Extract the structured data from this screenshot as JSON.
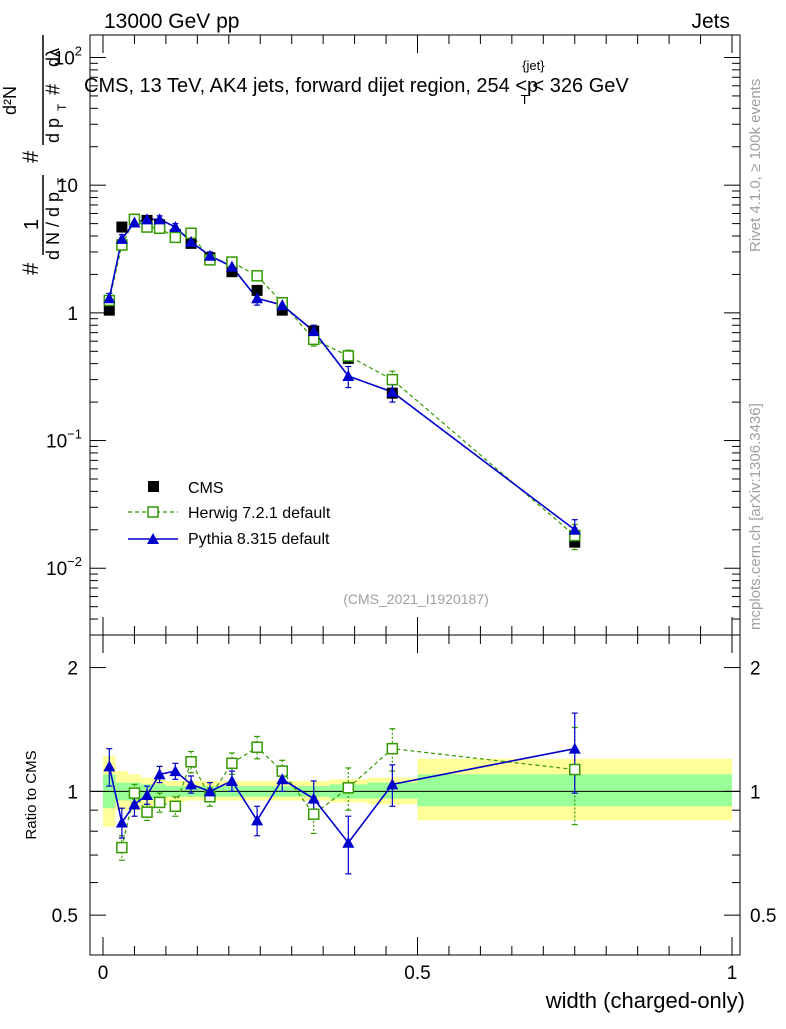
{
  "header": {
    "energy": "13000 GeV pp",
    "process": "Jets"
  },
  "side_text": {
    "rivet": "Rivet 4.1.0, ≥ 100k events",
    "mcplots": "mcplots.cern.ch [arXiv:1306.3436]"
  },
  "colors": {
    "cms": "#000000",
    "herwig": "#339900",
    "pythia": "#0000cc",
    "band_outer": "#ffff99",
    "band_inner": "#99ff99"
  },
  "chart_data": [
    {
      "type": "scatter",
      "name": "main",
      "title": "CMS, 13 TeV, AK4 jets, forward dijet region, 254 <p",
      "title_sup": "{jet}",
      "title_sub": "T",
      "title_tail": "< 326 GeV",
      "reference": "(CMS_2021_I1920187)",
      "yscale": "log",
      "ylim": [
        0.003,
        150
      ],
      "xlim": [
        -0.01,
        1.0
      ],
      "ylabel_prefix": "#",
      "ytick_labels": [
        {
          "value": 0.01,
          "base": "10",
          "exp": "−2"
        },
        {
          "value": 0.1,
          "base": "10",
          "exp": "−1"
        },
        {
          "value": 1,
          "base": "1",
          "exp": ""
        },
        {
          "value": 10,
          "base": "10",
          "exp": ""
        },
        {
          "value": 100,
          "base": "10",
          "exp": "2"
        }
      ],
      "legend": {
        "position": "bottom-left",
        "entries": [
          "CMS",
          "Herwig 7.2.1 default",
          "Pythia 8.315 default"
        ]
      },
      "series": [
        {
          "name": "CMS",
          "style": "data",
          "x": [
            0.01,
            0.03,
            0.05,
            0.07,
            0.09,
            0.115,
            0.14,
            0.17,
            0.205,
            0.245,
            0.285,
            0.335,
            0.39,
            0.46,
            0.75
          ],
          "y": [
            1.05,
            4.7,
            5.4,
            5.3,
            4.9,
            4.1,
            3.5,
            2.7,
            2.1,
            1.5,
            1.05,
            0.72,
            0.44,
            0.235,
            0.016
          ]
        },
        {
          "name": "Herwig 7.2.1 default",
          "style": "dashed-open-square",
          "x": [
            0.01,
            0.03,
            0.05,
            0.07,
            0.09,
            0.115,
            0.14,
            0.17,
            0.205,
            0.245,
            0.285,
            0.335,
            0.39,
            0.46,
            0.75
          ],
          "y": [
            1.25,
            3.4,
            5.4,
            4.7,
            4.6,
            3.9,
            4.2,
            2.6,
            2.5,
            1.95,
            1.2,
            0.62,
            0.46,
            0.3,
            0.018
          ],
          "err": [
            0.12,
            0.25,
            0.35,
            0.3,
            0.3,
            0.3,
            0.3,
            0.2,
            0.2,
            0.15,
            0.1,
            0.07,
            0.05,
            0.05,
            0.004
          ]
        },
        {
          "name": "Pythia 8.315 default",
          "style": "solid-filled-triangle",
          "x": [
            0.01,
            0.03,
            0.05,
            0.07,
            0.09,
            0.115,
            0.14,
            0.17,
            0.205,
            0.245,
            0.285,
            0.335,
            0.39,
            0.46,
            0.75
          ],
          "y": [
            1.3,
            3.8,
            5.1,
            5.4,
            5.4,
            4.7,
            3.6,
            2.8,
            2.3,
            1.3,
            1.15,
            0.72,
            0.32,
            0.24,
            0.02
          ],
          "err": [
            0.12,
            0.3,
            0.35,
            0.35,
            0.35,
            0.3,
            0.3,
            0.2,
            0.2,
            0.15,
            0.12,
            0.08,
            0.06,
            0.04,
            0.004
          ]
        }
      ]
    },
    {
      "type": "scatter",
      "name": "ratio",
      "ylabel": "Ratio to CMS",
      "xlabel": "width (charged-only)",
      "yscale": "log",
      "ylim": [
        0.4,
        2.4
      ],
      "xlim": [
        -0.01,
        1.0
      ],
      "ytick_labels": [
        {
          "value": 0.5,
          "label": "0.5"
        },
        {
          "value": 1,
          "label": "1"
        },
        {
          "value": 2,
          "label": "2"
        }
      ],
      "xtick_labels": [
        {
          "value": 0,
          "label": "0"
        },
        {
          "value": 0.5,
          "label": "0.5"
        },
        {
          "value": 1,
          "label": "1"
        }
      ],
      "bands": {
        "edges": [
          0.0,
          0.02,
          0.04,
          0.06,
          0.08,
          0.1,
          0.13,
          0.155,
          0.185,
          0.225,
          0.265,
          0.31,
          0.36,
          0.42,
          0.5,
          1.0
        ],
        "outer_lo": [
          0.82,
          0.9,
          0.9,
          0.92,
          0.93,
          0.94,
          0.95,
          0.95,
          0.95,
          0.95,
          0.95,
          0.95,
          0.94,
          0.93,
          0.85
        ],
        "outer_hi": [
          1.22,
          1.12,
          1.1,
          1.08,
          1.07,
          1.06,
          1.06,
          1.06,
          1.06,
          1.06,
          1.06,
          1.06,
          1.07,
          1.08,
          1.2
        ],
        "inner_lo": [
          0.91,
          0.95,
          0.95,
          0.96,
          0.96,
          0.97,
          0.97,
          0.97,
          0.97,
          0.97,
          0.97,
          0.97,
          0.96,
          0.96,
          0.92
        ],
        "inner_hi": [
          1.1,
          1.05,
          1.05,
          1.04,
          1.04,
          1.03,
          1.03,
          1.03,
          1.03,
          1.03,
          1.03,
          1.03,
          1.04,
          1.05,
          1.1
        ]
      },
      "series": [
        {
          "name": "Herwig 7.2.1 default",
          "style": "dashed-open-square",
          "x": [
            0.03,
            0.05,
            0.07,
            0.09,
            0.115,
            0.14,
            0.17,
            0.205,
            0.245,
            0.285,
            0.335,
            0.39,
            0.46,
            0.75
          ],
          "y": [
            0.73,
            0.99,
            0.89,
            0.94,
            0.92,
            1.18,
            0.97,
            1.17,
            1.28,
            1.12,
            0.88,
            1.02,
            1.27,
            1.13
          ],
          "err": [
            0.05,
            0.05,
            0.04,
            0.05,
            0.05,
            0.07,
            0.05,
            0.07,
            0.08,
            0.07,
            0.09,
            0.12,
            0.15,
            0.3
          ]
        },
        {
          "name": "Pythia 8.315 default",
          "style": "solid-filled-triangle",
          "x": [
            0.01,
            0.03,
            0.05,
            0.07,
            0.09,
            0.115,
            0.14,
            0.17,
            0.205,
            0.245,
            0.285,
            0.335,
            0.39,
            0.46,
            0.75
          ],
          "y": [
            1.15,
            0.84,
            0.93,
            0.98,
            1.1,
            1.12,
            1.04,
            1.0,
            1.06,
            0.85,
            1.07,
            0.96,
            0.75,
            1.04,
            1.27
          ],
          "err": [
            0.12,
            0.07,
            0.06,
            0.05,
            0.05,
            0.05,
            0.05,
            0.05,
            0.06,
            0.07,
            0.07,
            0.1,
            0.12,
            0.12,
            0.28
          ]
        }
      ]
    }
  ]
}
